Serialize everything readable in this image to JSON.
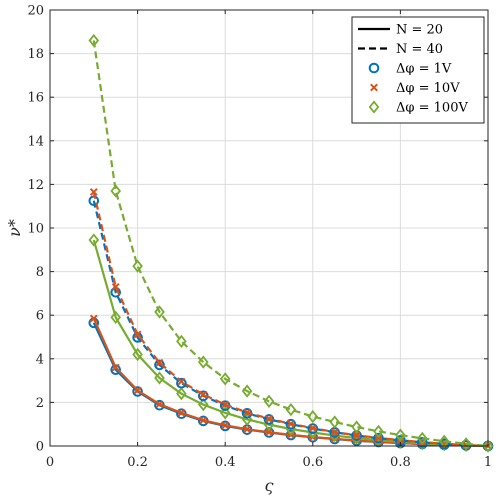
{
  "chart_data": {
    "type": "line",
    "title": "",
    "xlabel": "ς",
    "ylabel": "ν*",
    "xlim": [
      0,
      1
    ],
    "ylim": [
      0,
      20
    ],
    "xticks": [
      0,
      0.2,
      0.4,
      0.6,
      0.8,
      1
    ],
    "xtick_labels": [
      "0",
      "0.2",
      "0.4",
      "0.6",
      "0.8",
      "1"
    ],
    "yticks": [
      0,
      2,
      4,
      6,
      8,
      10,
      12,
      14,
      16,
      18,
      20
    ],
    "ytick_labels": [
      "0",
      "2",
      "4",
      "6",
      "8",
      "10",
      "12",
      "14",
      "16",
      "18",
      "20"
    ],
    "grid": true,
    "legend_position": "top-right",
    "x": [
      0.1,
      0.15,
      0.2,
      0.25,
      0.3,
      0.35,
      0.4,
      0.45,
      0.5,
      0.55,
      0.6,
      0.65,
      0.7,
      0.75,
      0.8,
      0.85,
      0.9,
      0.95,
      1.0
    ],
    "legend": [
      {
        "label": "N = 20",
        "kind": "solid-line"
      },
      {
        "label": "N = 40",
        "kind": "dashed-line"
      },
      {
        "label": "Δφ = 1V",
        "kind": "circle",
        "color": "#0072BD"
      },
      {
        "label": "Δφ = 10V",
        "kind": "cross",
        "color": "#D95319"
      },
      {
        "label": "Δφ = 100V",
        "kind": "diamond",
        "color": "#77AC30"
      }
    ],
    "series": [
      {
        "N": 20,
        "dphi": "1V",
        "line": "solid",
        "marker": "circle",
        "color": "#0072BD",
        "values": [
          5.65,
          3.5,
          2.5,
          1.87,
          1.48,
          1.15,
          0.92,
          0.75,
          0.62,
          0.5,
          0.4,
          0.32,
          0.24,
          0.18,
          0.13,
          0.09,
          0.05,
          0.02,
          0.0
        ]
      },
      {
        "N": 20,
        "dphi": "10V",
        "line": "solid",
        "marker": "cross",
        "color": "#D95319",
        "values": [
          5.85,
          3.6,
          2.55,
          1.92,
          1.52,
          1.18,
          0.95,
          0.77,
          0.63,
          0.51,
          0.41,
          0.33,
          0.25,
          0.19,
          0.14,
          0.09,
          0.05,
          0.02,
          0.0
        ]
      },
      {
        "N": 20,
        "dphi": "100V",
        "line": "solid",
        "marker": "diamond",
        "color": "#77AC30",
        "values": [
          9.45,
          5.9,
          4.2,
          3.12,
          2.4,
          1.9,
          1.52,
          1.22,
          0.98,
          0.78,
          0.62,
          0.48,
          0.36,
          0.27,
          0.19,
          0.12,
          0.07,
          0.03,
          0.0
        ]
      },
      {
        "N": 40,
        "dphi": "1V",
        "line": "dashed",
        "marker": "circle",
        "color": "#0072BD",
        "values": [
          11.25,
          7.05,
          4.98,
          3.72,
          2.88,
          2.3,
          1.85,
          1.5,
          1.22,
          1.0,
          0.8,
          0.63,
          0.48,
          0.36,
          0.26,
          0.17,
          0.1,
          0.04,
          0.0
        ]
      },
      {
        "N": 40,
        "dphi": "10V",
        "line": "dashed",
        "marker": "cross",
        "color": "#D95319",
        "values": [
          11.65,
          7.3,
          5.12,
          3.82,
          2.96,
          2.36,
          1.9,
          1.54,
          1.25,
          1.02,
          0.82,
          0.64,
          0.49,
          0.37,
          0.27,
          0.18,
          0.1,
          0.04,
          0.0
        ]
      },
      {
        "N": 40,
        "dphi": "100V",
        "line": "dashed",
        "marker": "diamond",
        "color": "#77AC30",
        "values": [
          18.6,
          11.7,
          8.25,
          6.15,
          4.8,
          3.85,
          3.08,
          2.52,
          2.05,
          1.67,
          1.35,
          1.1,
          0.87,
          0.67,
          0.5,
          0.35,
          0.22,
          0.1,
          0.0
        ]
      }
    ]
  }
}
